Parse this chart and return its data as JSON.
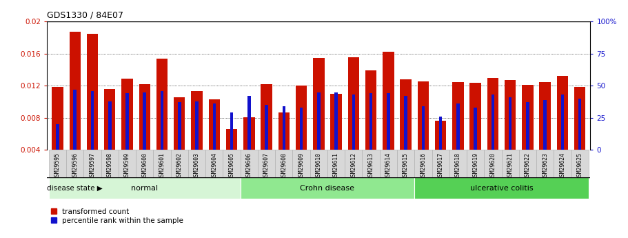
{
  "title": "GDS1330 / 84E07",
  "samples": [
    "GSM29595",
    "GSM29596",
    "GSM29597",
    "GSM29598",
    "GSM29599",
    "GSM29600",
    "GSM29601",
    "GSM29602",
    "GSM29603",
    "GSM29604",
    "GSM29605",
    "GSM29606",
    "GSM29607",
    "GSM29608",
    "GSM29609",
    "GSM29610",
    "GSM29611",
    "GSM29612",
    "GSM29613",
    "GSM29614",
    "GSM29615",
    "GSM29616",
    "GSM29617",
    "GSM29618",
    "GSM29619",
    "GSM29620",
    "GSM29621",
    "GSM29622",
    "GSM29623",
    "GSM29624",
    "GSM29625"
  ],
  "red_values": [
    0.01185,
    0.01875,
    0.01845,
    0.01155,
    0.0129,
    0.01215,
    0.0154,
    0.01055,
    0.0113,
    0.0103,
    0.0066,
    0.00805,
    0.01215,
    0.00865,
    0.01205,
    0.01545,
    0.01095,
    0.0155,
    0.0139,
    0.0162,
    0.01275,
    0.0125,
    0.0076,
    0.01245,
    0.01235,
    0.013,
    0.0127,
    0.0121,
    0.01245,
    0.0132,
    0.01185
  ],
  "blue_values_pct": [
    20,
    47,
    46,
    38,
    44,
    45,
    46,
    37,
    38,
    36,
    29,
    42,
    35,
    34,
    33,
    45,
    45,
    43,
    44,
    44,
    42,
    34,
    26,
    36,
    33,
    43,
    41,
    37,
    39,
    43,
    40
  ],
  "groups": [
    {
      "label": "normal",
      "start": 0,
      "end": 11,
      "color": "#d6f5d6"
    },
    {
      "label": "Crohn disease",
      "start": 11,
      "end": 21,
      "color": "#90e890"
    },
    {
      "label": "ulcerative colitis",
      "start": 21,
      "end": 31,
      "color": "#55d055"
    }
  ],
  "ylim_left": [
    0.004,
    0.02
  ],
  "yticks_left": [
    0.004,
    0.008,
    0.012,
    0.016,
    0.02
  ],
  "ylim_right": [
    0,
    100
  ],
  "yticks_right": [
    0,
    25,
    50,
    75,
    100
  ],
  "bar_color_red": "#cc1100",
  "bar_color_blue": "#1111cc",
  "left_tick_color": "#cc1100",
  "right_tick_color": "#1111cc",
  "legend_label_red": "transformed count",
  "legend_label_blue": "percentile rank within the sample",
  "disease_state_label": "disease state"
}
